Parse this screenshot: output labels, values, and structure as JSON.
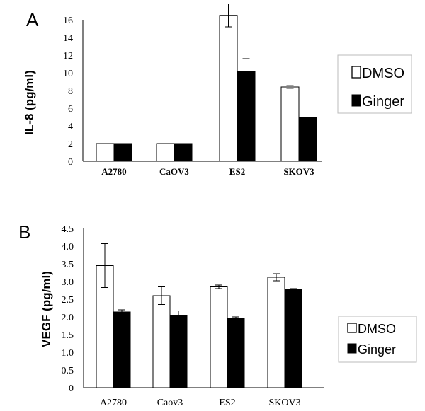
{
  "chart_data": [
    {
      "panel": "A",
      "type": "bar",
      "ylabel": "IL-8 (pg/ml)",
      "ylim": [
        0,
        16
      ],
      "yticks": [
        "0",
        "2",
        "4",
        "6",
        "8",
        "10",
        "12",
        "14",
        "16"
      ],
      "categories": [
        "A2780",
        "CaOV3",
        "ES2",
        "SKOV3"
      ],
      "series": [
        {
          "name": "DMSO",
          "color": "#ffffff",
          "values": [
            2,
            2,
            16.5,
            8.4
          ],
          "errors": [
            0,
            0,
            1.3,
            0.15
          ]
        },
        {
          "name": "Ginger",
          "color": "#000000",
          "values": [
            2,
            2,
            10.2,
            5
          ],
          "errors": [
            0,
            0,
            1.4,
            0
          ]
        }
      ],
      "legend": "right"
    },
    {
      "panel": "B",
      "type": "bar",
      "ylabel": "VEGF (pg/ml)",
      "ylim": [
        0,
        4.5
      ],
      "yticks": [
        "0",
        "0.5",
        "1.0",
        "1.5",
        "2.0",
        "2.5",
        "3.0",
        "3.5",
        "4.0",
        "4.5"
      ],
      "categories": [
        "A2780",
        "Caov3",
        "ES2",
        "SKOV3"
      ],
      "series": [
        {
          "name": "DMSO",
          "color": "#ffffff",
          "values": [
            3.45,
            2.6,
            2.85,
            3.12
          ],
          "errors": [
            0.62,
            0.25,
            0.05,
            0.1
          ]
        },
        {
          "name": "Ginger",
          "color": "#000000",
          "values": [
            2.14,
            2.05,
            1.97,
            2.77
          ],
          "errors": [
            0.06,
            0.12,
            0.03,
            0.03
          ]
        }
      ],
      "legend": "right"
    }
  ]
}
